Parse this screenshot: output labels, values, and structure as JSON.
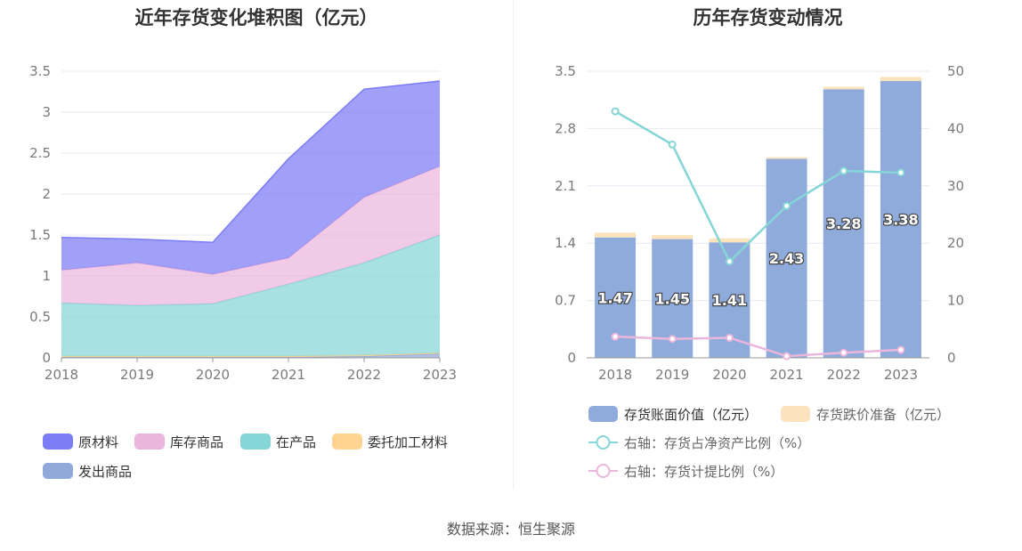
{
  "source": "数据来源：恒生聚源",
  "chart_data": [
    {
      "type": "area",
      "title": "近年存货变化堆积图（亿元）",
      "x": [
        "2018",
        "2019",
        "2020",
        "2021",
        "2022",
        "2023"
      ],
      "y_ticks": [
        "0",
        "0.5",
        "1",
        "1.5",
        "2",
        "2.5",
        "3",
        "3.5"
      ],
      "ylim": [
        0,
        3.5
      ],
      "stacked": true,
      "legend_position": "bottom",
      "series": [
        {
          "name": "发出商品",
          "values": [
            0.01,
            0.01,
            0.01,
            0.01,
            0.02,
            0.05
          ],
          "color": "#8fa9d9"
        },
        {
          "name": "委托加工材料",
          "values": [
            0.01,
            0.01,
            0.01,
            0.01,
            0.01,
            0.01
          ],
          "color": "#ffd591"
        },
        {
          "name": "在产品",
          "values": [
            0.65,
            0.62,
            0.64,
            0.88,
            1.13,
            1.44
          ],
          "color": "#86d5d7"
        },
        {
          "name": "库存商品",
          "values": [
            0.4,
            0.52,
            0.36,
            0.32,
            0.8,
            0.84
          ],
          "color": "#eab6dc"
        },
        {
          "name": "原材料",
          "values": [
            0.4,
            0.29,
            0.39,
            1.21,
            1.32,
            1.04
          ],
          "color": "#7c7cf5"
        }
      ],
      "legend_order": [
        "原材料",
        "库存商品",
        "在产品",
        "委托加工材料",
        "发出商品"
      ]
    },
    {
      "type": "bar",
      "title": "历年存货变动情况",
      "categories": [
        "2018",
        "2019",
        "2020",
        "2021",
        "2022",
        "2023"
      ],
      "y_left_ticks": [
        "0",
        "0.7",
        "1.4",
        "2.1",
        "2.8",
        "3.5"
      ],
      "y_left_lim": [
        0,
        3.5
      ],
      "y_right_ticks": [
        "0",
        "10",
        "20",
        "30",
        "40",
        "50"
      ],
      "y_right_lim": [
        0,
        50
      ],
      "stacked_bars": true,
      "bar_series": [
        {
          "name": "存货账面价值（亿元）",
          "values": [
            1.47,
            1.45,
            1.41,
            2.43,
            3.28,
            3.38
          ],
          "labels": [
            "1.47",
            "1.45",
            "1.41",
            "2.43",
            "3.28",
            "3.38"
          ],
          "color": "#8fabdb"
        },
        {
          "name": "存货跌价准备（亿元）",
          "values": [
            0.06,
            0.05,
            0.05,
            0.02,
            0.03,
            0.05
          ],
          "color": "#fde3bd"
        }
      ],
      "line_series": [
        {
          "name": "右轴：存货占净资产比例（%）",
          "values": [
            43.0,
            37.2,
            16.8,
            26.5,
            32.6,
            32.3
          ],
          "color": "#86d5d7"
        },
        {
          "name": "右轴：存货计提比例（%）",
          "values": [
            3.7,
            3.3,
            3.5,
            0.3,
            0.9,
            1.4
          ],
          "color": "#eab6dc"
        }
      ],
      "legend_position": "bottom"
    }
  ]
}
